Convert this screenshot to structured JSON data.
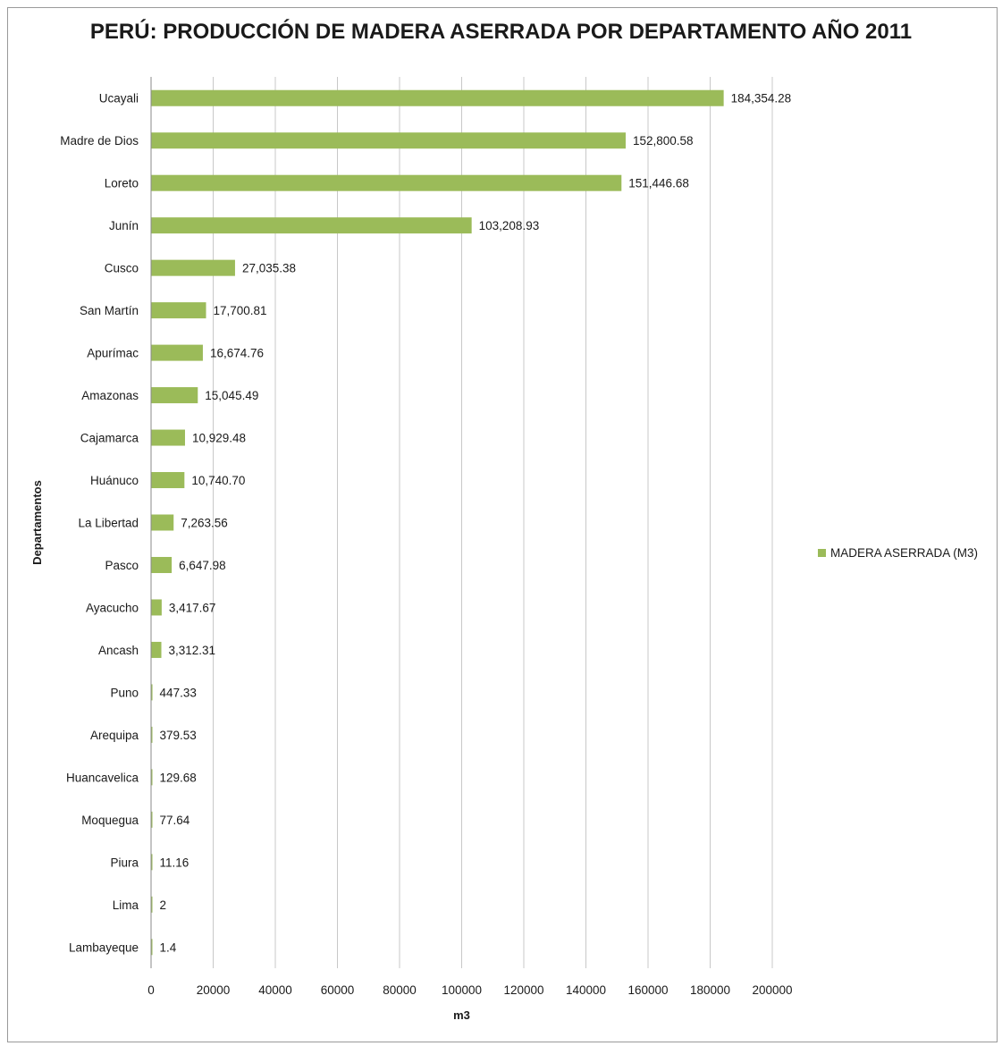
{
  "chart_data": {
    "type": "bar",
    "orientation": "horizontal",
    "title": "PERÚ: PRODUCCIÓN DE MADERA ASERRADA POR DEPARTAMENTO AÑO 2011",
    "xlabel": "m3",
    "ylabel": "Departamentos",
    "xlim": [
      0,
      200000
    ],
    "x_ticks": [
      "0",
      "20000",
      "40000",
      "60000",
      "80000",
      "100000",
      "120000",
      "140000",
      "160000",
      "180000",
      "200000"
    ],
    "grid": true,
    "legend_position": "right",
    "categories": [
      "Ucayali",
      "Madre de Dios",
      "Loreto",
      "Junín",
      "Cusco",
      "San Martín",
      "Apurímac",
      "Amazonas",
      "Cajamarca",
      "Huánuco",
      "La Libertad",
      "Pasco",
      "Ayacucho",
      "Ancash",
      "Puno",
      "Arequipa",
      "Huancavelica",
      "Moquegua",
      "Piura",
      "Lima",
      "Lambayeque"
    ],
    "series": [
      {
        "name": "MADERA ASERRADA (M3)",
        "color": "#9bbb59",
        "values": [
          184354.28,
          152800.58,
          151446.68,
          103208.93,
          27035.38,
          17700.81,
          16674.76,
          15045.49,
          10929.48,
          10740.7,
          7263.56,
          6647.98,
          3417.67,
          3312.31,
          447.33,
          379.53,
          129.68,
          77.64,
          11.16,
          2,
          1.4
        ],
        "labels": [
          "184,354.28",
          "152,800.58",
          "151,446.68",
          "103,208.93",
          "27,035.38",
          "17,700.81",
          "16,674.76",
          "15,045.49",
          "10,929.48",
          "10,740.70",
          "7,263.56",
          "6,647.98",
          "3,417.67",
          "3,312.31",
          "447.33",
          "379.53",
          "129.68",
          "77.64",
          "11.16",
          "2",
          "1.4"
        ]
      }
    ]
  }
}
